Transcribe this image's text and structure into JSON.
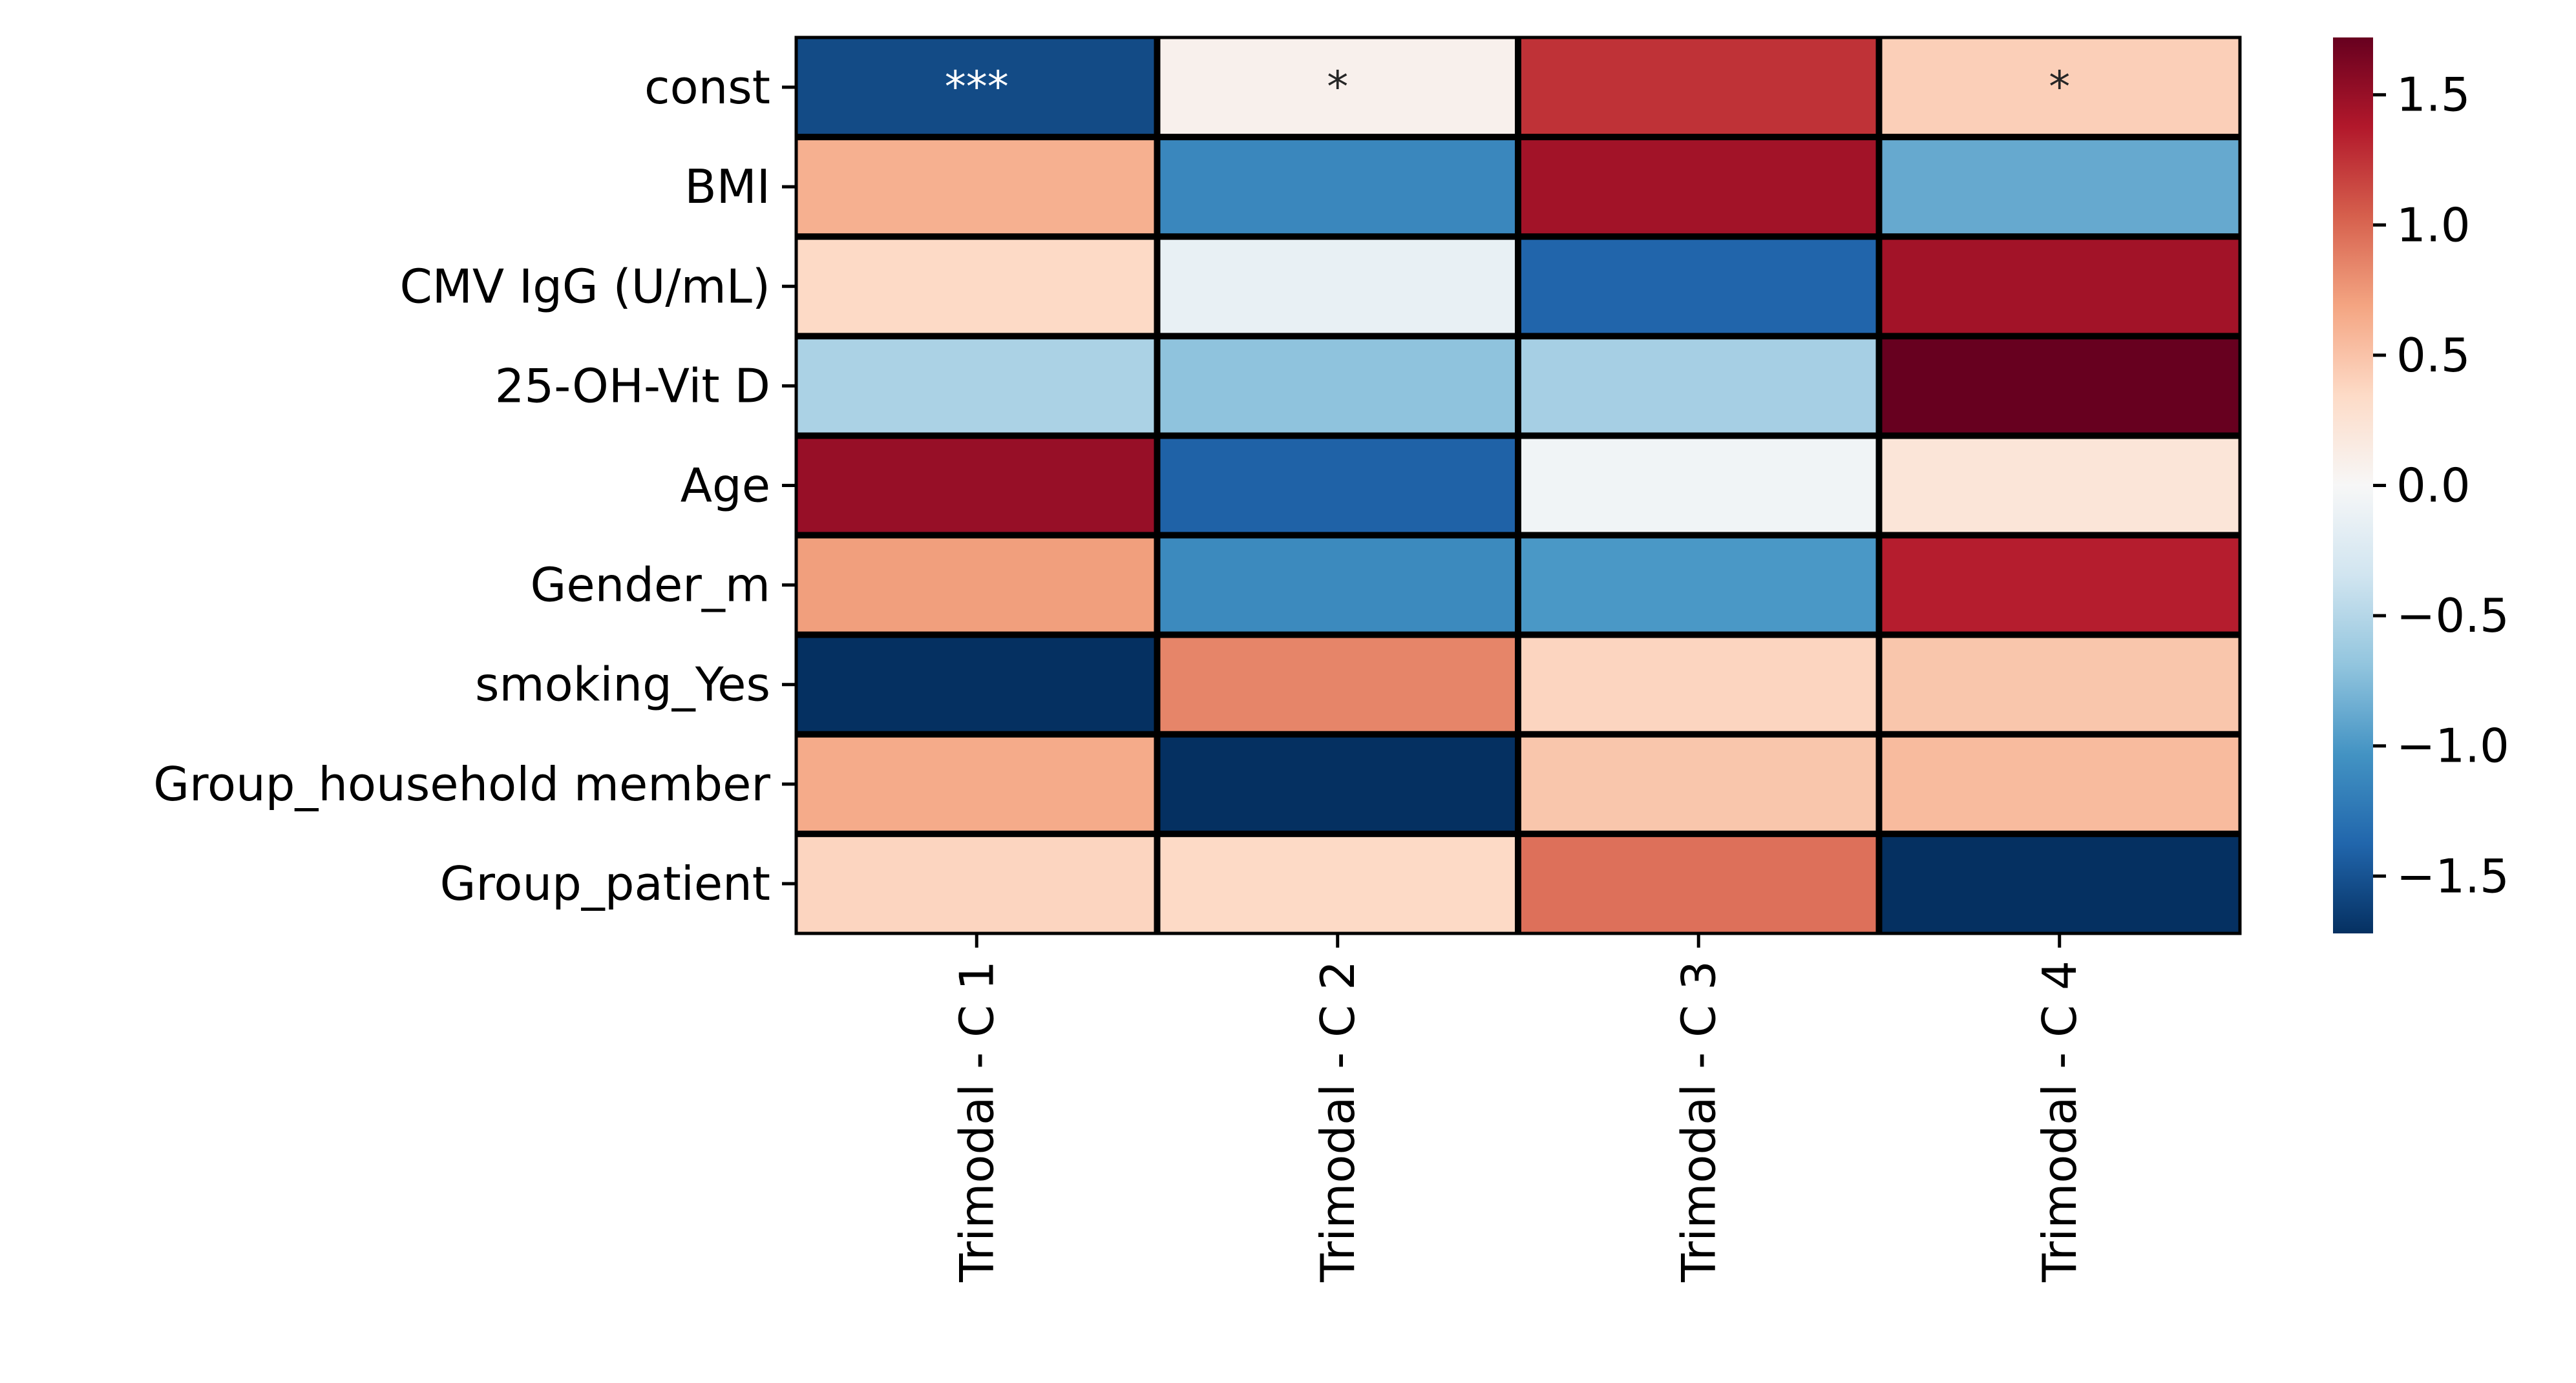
{
  "chart_data": {
    "type": "heatmap",
    "rows": [
      "const",
      "BMI",
      "CMV IgG (U/mL)",
      "25-OH-Vit D",
      "Age",
      "Gender_m",
      "smoking_Yes",
      "Group_household member",
      "Group_patient"
    ],
    "columns": [
      "Trimodal - C 1",
      "Trimodal - C 2",
      "Trimodal - C 3",
      "Trimodal - C 4"
    ],
    "values": [
      [
        -1.55,
        0.08,
        1.25,
        0.42
      ],
      [
        0.62,
        -1.12,
        1.45,
        -0.88
      ],
      [
        0.35,
        -0.14,
        -1.38,
        1.45
      ],
      [
        -0.55,
        -0.7,
        -0.58,
        1.72
      ],
      [
        1.5,
        -1.4,
        -0.06,
        0.22
      ],
      [
        0.72,
        -1.1,
        -1.0,
        1.35
      ],
      [
        -1.72,
        0.85,
        0.38,
        0.48
      ],
      [
        0.65,
        -1.72,
        0.48,
        0.55
      ],
      [
        0.38,
        0.35,
        0.95,
        -1.72
      ]
    ],
    "annotations": [
      [
        "***",
        "*",
        "",
        "*"
      ],
      [
        "",
        "",
        "",
        ""
      ],
      [
        "",
        "",
        "",
        ""
      ],
      [
        "",
        "",
        "",
        ""
      ],
      [
        "",
        "",
        "",
        ""
      ],
      [
        "",
        "",
        "",
        ""
      ],
      [
        "",
        "",
        "",
        ""
      ],
      [
        "",
        "",
        "",
        ""
      ],
      [
        "",
        "",
        "",
        ""
      ]
    ],
    "colormap": "RdBu_r",
    "vmin": -1.72,
    "vmax": 1.72,
    "colorbar": {
      "ticks": [
        1.5,
        1.0,
        0.5,
        0.0,
        -0.5,
        -1.0,
        -1.5
      ],
      "tick_labels": [
        "1.5",
        "1.0",
        "0.5",
        "0.0",
        "−0.5",
        "−1.0",
        "−1.5"
      ]
    },
    "cell_border_color": "#000000",
    "title": "",
    "xlabel": "",
    "ylabel": ""
  }
}
